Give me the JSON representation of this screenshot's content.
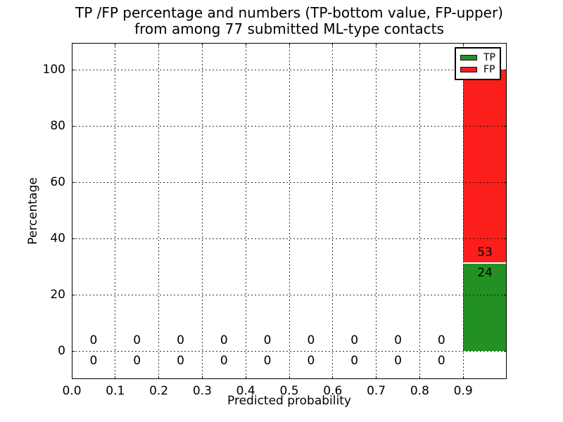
{
  "title": {
    "line1": "TP /FP percentage and numbers (TP-bottom value, FP-upper)",
    "line2": "from among 77 submitted ML-type contacts"
  },
  "axes": {
    "xlabel": "Predicted probability",
    "ylabel": "Percentage",
    "x_tick_labels": [
      "0.0",
      "0.1",
      "0.2",
      "0.3",
      "0.4",
      "0.5",
      "0.6",
      "0.7",
      "0.8",
      "0.9"
    ],
    "y_tick_labels": [
      "0",
      "20",
      "40",
      "60",
      "80",
      "100"
    ]
  },
  "legend": {
    "position": "upper right",
    "entries": [
      {
        "label": "TP",
        "color": "#229122"
      },
      {
        "label": "FP",
        "color": "#fb1e1a"
      }
    ]
  },
  "chart_data": {
    "type": "bar",
    "stacked": true,
    "title": "TP /FP percentage and numbers (TP-bottom value, FP-upper)\nfrom among 77 submitted ML-type contacts",
    "xlabel": "Predicted probability",
    "ylabel": "Percentage",
    "total_submitted": 77,
    "bin_width": 0.1,
    "bin_centers": [
      0.05,
      0.15,
      0.25,
      0.35,
      0.45,
      0.55,
      0.65,
      0.75,
      0.85,
      0.95
    ],
    "x_ticks": [
      0.0,
      0.1,
      0.2,
      0.3,
      0.4,
      0.5,
      0.6,
      0.7,
      0.8,
      0.9
    ],
    "y_ticks": [
      0,
      20,
      40,
      60,
      80,
      100
    ],
    "xlim": [
      0.0,
      1.0
    ],
    "ylim": [
      -10,
      109.5
    ],
    "grid": "dotted",
    "legend_position": "upper right",
    "series": [
      {
        "name": "TP",
        "color": "#229122",
        "counts": [
          0,
          0,
          0,
          0,
          0,
          0,
          0,
          0,
          0,
          24
        ],
        "percentages": [
          0,
          0,
          0,
          0,
          0,
          0,
          0,
          0,
          0,
          31.2
        ]
      },
      {
        "name": "FP",
        "color": "#fb1e1a",
        "counts": [
          0,
          0,
          0,
          0,
          0,
          0,
          0,
          0,
          0,
          53
        ],
        "percentages": [
          0,
          0,
          0,
          0,
          0,
          0,
          0,
          0,
          0,
          68.8
        ]
      }
    ]
  }
}
